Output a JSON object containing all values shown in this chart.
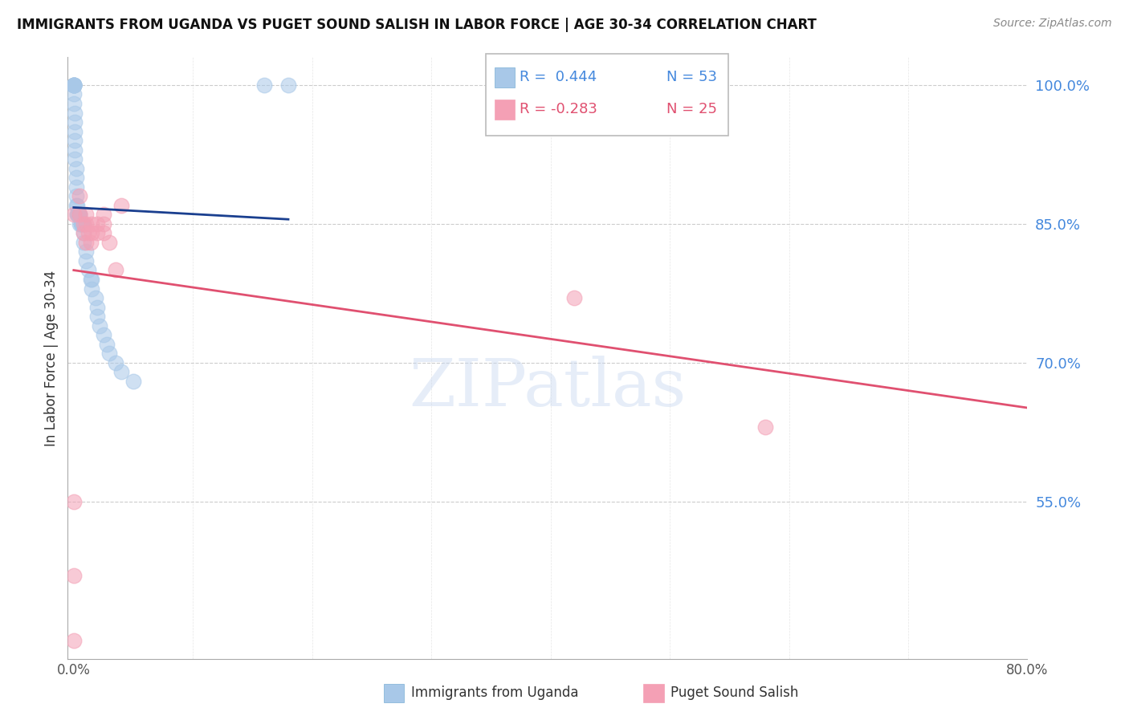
{
  "title": "IMMIGRANTS FROM UGANDA VS PUGET SOUND SALISH IN LABOR FORCE | AGE 30-34 CORRELATION CHART",
  "source": "Source: ZipAtlas.com",
  "ylabel": "In Labor Force | Age 30-34",
  "xlim": [
    -0.005,
    0.8
  ],
  "ylim": [
    0.38,
    1.03
  ],
  "xticks": [
    0.0,
    0.1,
    0.2,
    0.3,
    0.4,
    0.5,
    0.6,
    0.7,
    0.8
  ],
  "xticklabels": [
    "0.0%",
    "",
    "",
    "",
    "",
    "",
    "",
    "",
    "80.0%"
  ],
  "yticks_right": [
    1.0,
    0.85,
    0.7,
    0.55
  ],
  "ytick_labels_right": [
    "100.0%",
    "85.0%",
    "70.0%",
    "55.0%"
  ],
  "grid_color": "#cccccc",
  "blue_color": "#a8c8e8",
  "pink_color": "#f4a0b5",
  "blue_line_color": "#1a3f8f",
  "pink_line_color": "#e05070",
  "legend_blue_r": "R =  0.444",
  "legend_blue_n": "N = 53",
  "legend_pink_r": "R = -0.283",
  "legend_pink_n": "N = 25",
  "blue_r": 0.444,
  "pink_r": -0.283,
  "blue_x": [
    0.0,
    0.0,
    0.0,
    0.0,
    0.0,
    0.0,
    0.0,
    0.0,
    0.0,
    0.001,
    0.001,
    0.001,
    0.001,
    0.001,
    0.001,
    0.002,
    0.002,
    0.002,
    0.002,
    0.002,
    0.003,
    0.003,
    0.003,
    0.004,
    0.004,
    0.005,
    0.005,
    0.005,
    0.006,
    0.006,
    0.007,
    0.007,
    0.008,
    0.008,
    0.008,
    0.01,
    0.01,
    0.012,
    0.014,
    0.015,
    0.015,
    0.018,
    0.02,
    0.02,
    0.022,
    0.025,
    0.028,
    0.03,
    0.035,
    0.04,
    0.05,
    0.16,
    0.18
  ],
  "blue_y": [
    1.0,
    1.0,
    1.0,
    1.0,
    1.0,
    1.0,
    1.0,
    0.99,
    0.98,
    0.97,
    0.96,
    0.95,
    0.94,
    0.93,
    0.92,
    0.91,
    0.9,
    0.89,
    0.88,
    0.87,
    0.87,
    0.86,
    0.86,
    0.86,
    0.86,
    0.86,
    0.86,
    0.85,
    0.85,
    0.85,
    0.85,
    0.85,
    0.85,
    0.84,
    0.83,
    0.82,
    0.81,
    0.8,
    0.79,
    0.79,
    0.78,
    0.77,
    0.76,
    0.75,
    0.74,
    0.73,
    0.72,
    0.71,
    0.7,
    0.69,
    0.68,
    1.0,
    1.0
  ],
  "pink_x": [
    0.0,
    0.0,
    0.0,
    0.005,
    0.005,
    0.008,
    0.008,
    0.01,
    0.01,
    0.01,
    0.012,
    0.014,
    0.015,
    0.015,
    0.02,
    0.02,
    0.025,
    0.025,
    0.025,
    0.03,
    0.035,
    0.04,
    0.42,
    0.58,
    0.0
  ],
  "pink_y": [
    0.86,
    0.55,
    0.47,
    0.88,
    0.86,
    0.85,
    0.84,
    0.86,
    0.85,
    0.83,
    0.84,
    0.83,
    0.85,
    0.84,
    0.85,
    0.84,
    0.86,
    0.85,
    0.84,
    0.83,
    0.8,
    0.87,
    0.77,
    0.63,
    0.4
  ]
}
